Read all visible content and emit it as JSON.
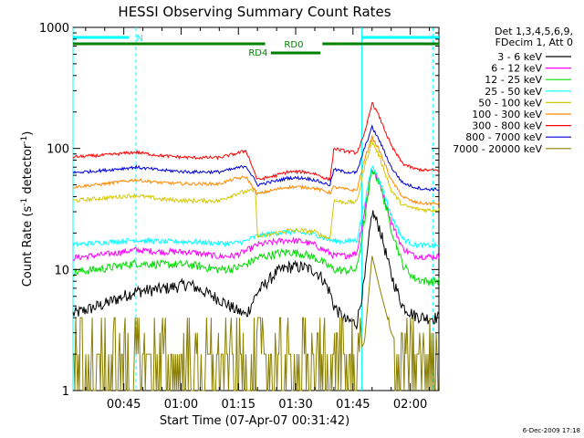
{
  "chart_data": {
    "type": "line",
    "title": "HESSI Observing Summary Count Rates",
    "xlabel": "Start Time (07-Apr-07 00:31:42)",
    "ylabel_main": "Count Rate (s",
    "ylabel_sup1": "-1",
    "ylabel_mid": " detector",
    "ylabel_sup2": "-1",
    "ylabel_end": ")",
    "yscale": "log",
    "ylim": [
      1,
      1000
    ],
    "xlim_minutes": [
      31.7,
      127.5
    ],
    "x_ticks": [
      {
        "m": 45,
        "label": "00:45"
      },
      {
        "m": 60,
        "label": "01:00"
      },
      {
        "m": 75,
        "label": "01:15"
      },
      {
        "m": 90,
        "label": "01:30"
      },
      {
        "m": 105,
        "label": "01:45"
      },
      {
        "m": 120,
        "label": "02:00"
      }
    ],
    "y_ticks": [
      {
        "v": 1,
        "label": "1"
      },
      {
        "v": 10,
        "label": "10"
      },
      {
        "v": 100,
        "label": "100"
      },
      {
        "v": 1000,
        "label": "1000"
      }
    ],
    "legend": {
      "header1": "Det 1,3,4,5,6,9,",
      "header2": "FDecim 1, Att 0",
      "placement": "right-outside"
    },
    "series": [
      {
        "name": "3 - 6 keV",
        "color": "#000000",
        "x": [
          31.7,
          40,
          48,
          55,
          62,
          70,
          74,
          77,
          80,
          85,
          88,
          92,
          95,
          97,
          99,
          100,
          103,
          106,
          108,
          110,
          112,
          115,
          118,
          121,
          124,
          127.5
        ],
        "y": [
          4.3,
          5.2,
          6.6,
          6.9,
          7.6,
          5.7,
          4.7,
          4.2,
          6.5,
          9.5,
          10.5,
          10.5,
          9.8,
          8.5,
          6.5,
          5,
          3.8,
          3.6,
          8,
          30,
          22,
          9,
          5,
          4.2,
          4.0,
          4.0
        ]
      },
      {
        "name": "6 - 12 keV",
        "color": "#ff00ff",
        "x": [
          31.7,
          40,
          48,
          55,
          62,
          70,
          74,
          77,
          80,
          85,
          88,
          92,
          95,
          97,
          99,
          100,
          103,
          106,
          108,
          110,
          112,
          115,
          118,
          121,
          124,
          127.5
        ],
        "y": [
          12.5,
          13.3,
          14.5,
          14,
          14,
          12.8,
          13,
          14.2,
          16,
          17,
          17.5,
          17,
          16,
          14.7,
          13.7,
          13,
          13,
          13.7,
          30,
          68,
          52,
          25,
          15,
          13,
          12.8,
          12.8
        ]
      },
      {
        "name": "12 - 25 keV",
        "color": "#00dd00",
        "x": [
          31.7,
          40,
          48,
          55,
          62,
          70,
          74,
          77,
          80,
          85,
          88,
          92,
          95,
          97,
          99,
          100,
          103,
          106,
          108,
          110,
          112,
          115,
          118,
          121,
          124,
          127.5
        ],
        "y": [
          9.5,
          10.2,
          11.3,
          11,
          11,
          10,
          10.2,
          11,
          12.5,
          13.5,
          14,
          13.5,
          12.5,
          11.5,
          10.5,
          10,
          9.8,
          10,
          25,
          68,
          52,
          22,
          11,
          8.5,
          8.0,
          8.0
        ]
      },
      {
        "name": "25 - 50 keV",
        "color": "#00ffff",
        "x": [
          31.7,
          40,
          48,
          55,
          62,
          70,
          74,
          77,
          80,
          85,
          88,
          92,
          95,
          97,
          99,
          100,
          103,
          106,
          108,
          110,
          112,
          115,
          118,
          121,
          124,
          127.5
        ],
        "y": [
          16,
          16.8,
          17.5,
          17,
          17,
          16.5,
          16.5,
          17.2,
          19,
          20,
          20.5,
          20,
          19.5,
          18.5,
          17.5,
          17.3,
          17,
          17.5,
          35,
          72,
          55,
          28,
          18,
          16,
          15.8,
          15.8
        ]
      },
      {
        "name": "50 - 100 keV",
        "color": "#d2c800",
        "x": [
          31.7,
          40,
          48,
          55,
          62,
          70,
          74,
          77,
          79.5,
          80,
          85,
          88,
          92,
          95,
          97,
          99,
          100,
          103,
          106,
          108,
          110,
          112,
          115,
          118,
          121,
          124,
          127.5
        ],
        "y": [
          37,
          39,
          41,
          38,
          37,
          37,
          42,
          44,
          45,
          18.5,
          20,
          21,
          21,
          20.5,
          19,
          18,
          37,
          36,
          36,
          70,
          115,
          85,
          45,
          34,
          32,
          31,
          31
        ]
      },
      {
        "name": "100 - 300 keV",
        "color": "#ff8800",
        "x": [
          31.7,
          40,
          48,
          55,
          62,
          70,
          74,
          77,
          80,
          85,
          88,
          92,
          95,
          97,
          99,
          100,
          103,
          106,
          108,
          110,
          112,
          115,
          118,
          121,
          124,
          127.5
        ],
        "y": [
          48,
          51,
          55,
          52,
          51,
          51,
          56,
          58,
          42,
          46,
          48,
          48,
          47,
          45,
          43,
          48,
          46,
          45,
          80,
          125,
          95,
          55,
          40,
          36,
          35,
          35
        ]
      },
      {
        "name": "300 - 800 keV",
        "color": "#ff0000",
        "x": [
          31.7,
          40,
          48,
          55,
          62,
          70,
          74,
          77,
          80,
          85,
          88,
          92,
          95,
          97,
          99,
          100,
          103,
          106,
          108,
          110,
          112,
          115,
          118,
          121,
          124,
          127.5
        ],
        "y": [
          85,
          88,
          93,
          87,
          84,
          84,
          90,
          96,
          55,
          60,
          64,
          64,
          62,
          58,
          55,
          100,
          95,
          92,
          130,
          240,
          180,
          105,
          75,
          68,
          66,
          66
        ]
      },
      {
        "name": "800 - 7000 keV",
        "color": "#0000dd",
        "x": [
          31.7,
          40,
          48,
          55,
          62,
          70,
          74,
          77,
          80,
          85,
          88,
          92,
          95,
          97,
          99,
          100,
          103,
          106,
          108,
          110,
          112,
          115,
          118,
          121,
          124,
          127.5
        ],
        "y": [
          63,
          66,
          70,
          66,
          64,
          64,
          68,
          72,
          50,
          54,
          57,
          57,
          55,
          52,
          50,
          67,
          64,
          63,
          100,
          150,
          115,
          70,
          52,
          48,
          46,
          46
        ]
      },
      {
        "name": "7000 - 20000 keV",
        "color": "#8b8000",
        "x": [
          31.7,
          40,
          48,
          55,
          62,
          70,
          74,
          77,
          80,
          85,
          88,
          92,
          95,
          97,
          99,
          100,
          103,
          106,
          108,
          110,
          112,
          115,
          118,
          121,
          124,
          127.5
        ],
        "y": [
          2,
          2.2,
          2,
          2,
          2,
          2,
          2.2,
          2.3,
          2.6,
          3.4,
          3.7,
          3.5,
          3.2,
          2.6,
          2.3,
          2.2,
          1.8,
          1.9,
          2.5,
          13,
          7,
          3,
          2,
          1.6,
          1.5,
          1.5
        ]
      }
    ],
    "annotations": {
      "vlines_solid": [
        31.7,
        107.3
      ],
      "vlines_dashed": [
        48.2,
        126.0
      ],
      "n_bars": [
        {
          "m0": 31.7,
          "m1": 46.3,
          "label": "N"
        },
        {
          "m0": 107.3,
          "m1": 127.5,
          "label": ""
        }
      ],
      "rd0_bars": [
        {
          "m0": 31.7,
          "m1": 82.0
        },
        {
          "m0": 97.0,
          "m1": 127.5
        }
      ],
      "rd0_label": "RD0",
      "rd4_bar": {
        "m0": 83.5,
        "m1": 96.5
      },
      "rd4_label": "RD4"
    },
    "timestamp": "6-Dec-2009 17:18"
  }
}
